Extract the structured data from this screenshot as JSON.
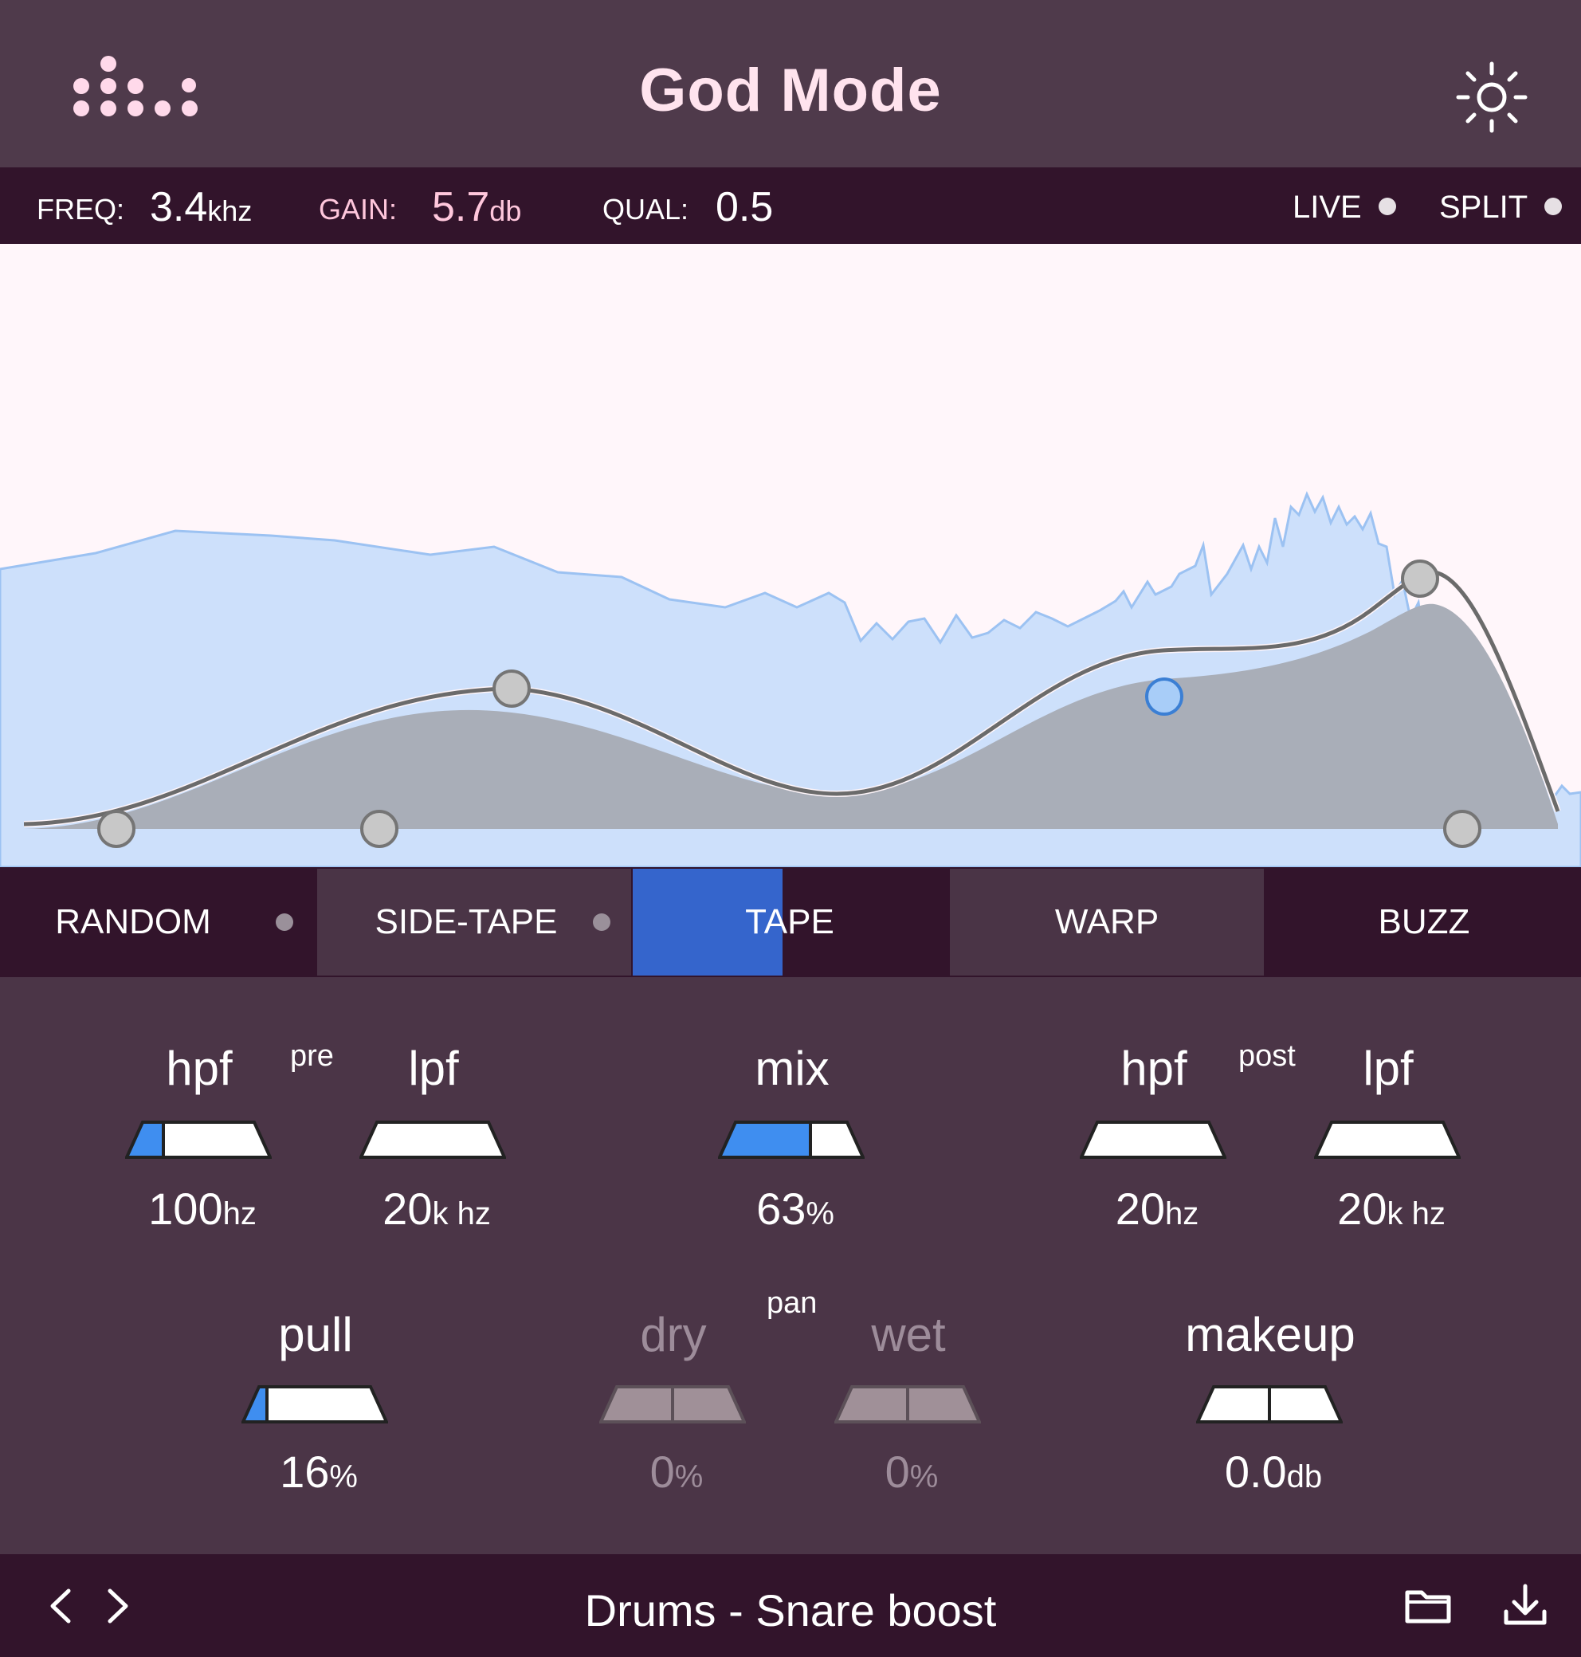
{
  "app": {
    "title": "God Mode",
    "logo_icon": "dot-grid-logo-icon",
    "theme_icon": "sun-icon"
  },
  "readout": {
    "freq": {
      "label": "FREQ:",
      "value": "3.4",
      "unit": "khz"
    },
    "gain": {
      "label": "GAIN:",
      "value": "5.7",
      "unit": "db"
    },
    "qual": {
      "label": "QUAL:",
      "value": "0.5"
    },
    "live_label": "LIVE",
    "split_label": "SPLIT"
  },
  "eq_nodes": [
    {
      "type": "hpf",
      "freq_hz": 20,
      "active": false
    },
    {
      "type": "low-shelf",
      "freq_hz": 100,
      "active": false
    },
    {
      "type": "bell",
      "freq_hz": 300,
      "active": false
    },
    {
      "type": "bell",
      "freq_hz": 3400,
      "active": true
    },
    {
      "type": "bell",
      "freq_hz": 9000,
      "active": false
    },
    {
      "type": "lpf",
      "freq_hz": 11000,
      "active": false
    }
  ],
  "modes": {
    "tabs": [
      {
        "label": "RANDOM",
        "has_dot": true,
        "selected": false
      },
      {
        "label": "SIDE-TAPE",
        "has_dot": true,
        "selected": false
      },
      {
        "label": "TAPE",
        "has_dot": false,
        "selected": true,
        "progress": 0.48
      },
      {
        "label": "WARP",
        "has_dot": false,
        "selected": false
      },
      {
        "label": "BUZZ",
        "has_dot": false,
        "selected": false
      }
    ]
  },
  "controls": {
    "pre_label": "pre",
    "post_label": "post",
    "pan_label": "pan",
    "pre_hpf": {
      "label": "hpf",
      "value": "100",
      "unit": "hz",
      "fill": 0.27
    },
    "pre_lpf": {
      "label": "lpf",
      "value": "20",
      "unit": "k hz",
      "fill": 0.0
    },
    "mix": {
      "label": "mix",
      "value": "63",
      "unit": "%",
      "fill": 0.63
    },
    "post_hpf": {
      "label": "hpf",
      "value": "20",
      "unit": "hz",
      "fill": 0.0
    },
    "post_lpf": {
      "label": "lpf",
      "value": "20",
      "unit": "k hz",
      "fill": 0.0
    },
    "pull": {
      "label": "pull",
      "value": "16",
      "unit": "%",
      "fill": 0.16
    },
    "dry": {
      "label": "dry",
      "value": "0",
      "unit": "%",
      "fill": 0.5,
      "disabled": true
    },
    "wet": {
      "label": "wet",
      "value": "0",
      "unit": "%",
      "fill": 0.5,
      "disabled": true
    },
    "makeup": {
      "label": "makeup",
      "value": "0.0",
      "unit": "db",
      "fill": 0.5
    }
  },
  "footer": {
    "preset_name": "Drums - Snare boost",
    "prev_icon": "chevron-left-icon",
    "next_icon": "chevron-right-icon",
    "folder_icon": "folder-icon",
    "save_icon": "download-icon"
  },
  "colors": {
    "accent": "#3f8ef0",
    "tab_selected": "#3565cc",
    "header_bg": "#4f3a4b",
    "bar_bg": "#32142b",
    "spectrum_fill": "#cde0fb",
    "spectrum_line": "#9cc2f2",
    "eq_fill": "#a9aeb8",
    "eq_line": "#6b6b6b"
  }
}
